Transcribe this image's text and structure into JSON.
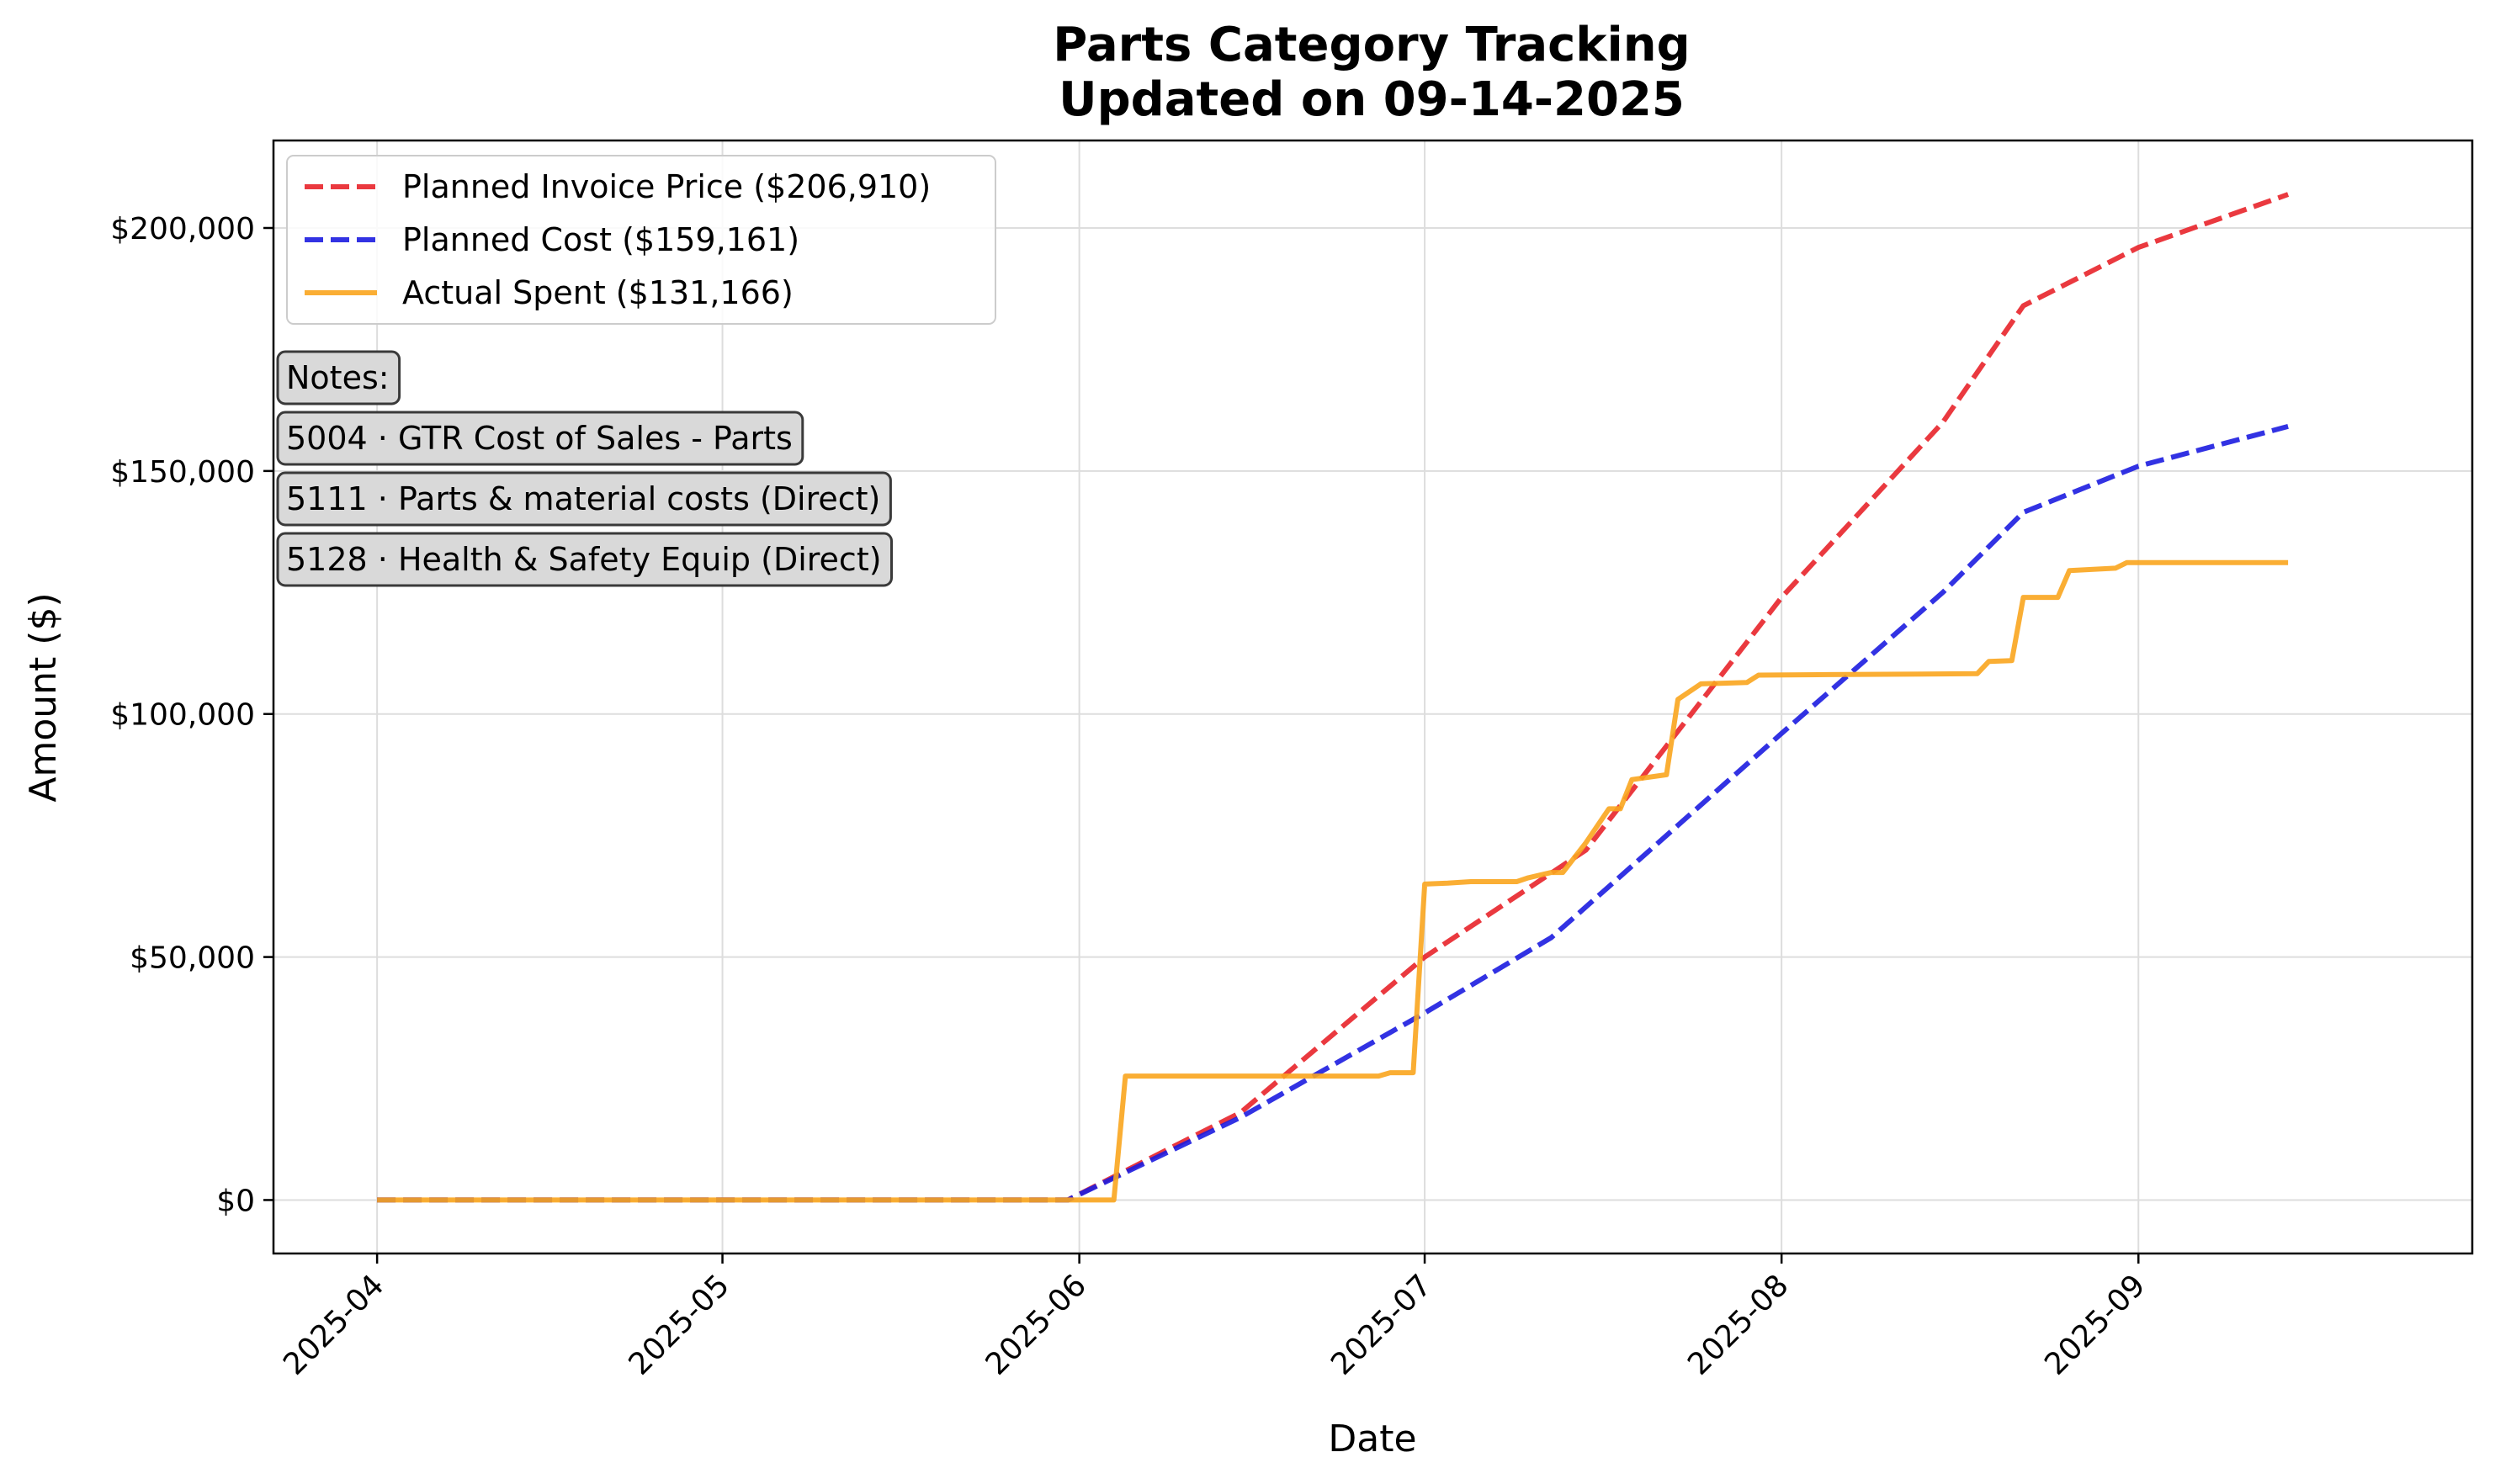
{
  "chart_data": {
    "type": "line",
    "title": "Parts Category Tracking",
    "subtitle": "Updated on 09-14-2025",
    "xlabel": "Date",
    "ylabel": "Amount ($)",
    "x_range": [
      "2025-03-23",
      "2025-09-30"
    ],
    "ylim": [
      -11000,
      218000
    ],
    "grid": true,
    "legend_position": "upper-left",
    "x_ticks": [
      {
        "date": "2025-04-01",
        "label": "2025-04"
      },
      {
        "date": "2025-05-01",
        "label": "2025-05"
      },
      {
        "date": "2025-06-01",
        "label": "2025-06"
      },
      {
        "date": "2025-07-01",
        "label": "2025-07"
      },
      {
        "date": "2025-08-01",
        "label": "2025-08"
      },
      {
        "date": "2025-09-01",
        "label": "2025-09"
      }
    ],
    "y_ticks": [
      {
        "value": 0,
        "label": "$0"
      },
      {
        "value": 50000,
        "label": "$50,000"
      },
      {
        "value": 100000,
        "label": "$100,000"
      },
      {
        "value": 150000,
        "label": "$150,000"
      },
      {
        "value": 200000,
        "label": "$200,000"
      }
    ],
    "series": [
      {
        "name": "Planned Invoice Price ($206,910)",
        "color": "#e8242a",
        "style": "dashed",
        "points": [
          [
            "2025-04-01",
            0
          ],
          [
            "2025-05-31",
            0
          ],
          [
            "2025-06-15",
            18000
          ],
          [
            "2025-07-01",
            50000
          ],
          [
            "2025-07-15",
            72000
          ],
          [
            "2025-08-01",
            124000
          ],
          [
            "2025-08-15",
            160000
          ],
          [
            "2025-08-22",
            184000
          ],
          [
            "2025-09-01",
            196000
          ],
          [
            "2025-09-14",
            206910
          ]
        ]
      },
      {
        "name": "Planned Cost ($159,161)",
        "color": "#1c1ce0",
        "style": "dashed",
        "points": [
          [
            "2025-04-01",
            0
          ],
          [
            "2025-05-31",
            0
          ],
          [
            "2025-06-15",
            17000
          ],
          [
            "2025-07-01",
            38500
          ],
          [
            "2025-07-12",
            54000
          ],
          [
            "2025-08-01",
            96000
          ],
          [
            "2025-08-15",
            125000
          ],
          [
            "2025-08-22",
            141500
          ],
          [
            "2025-09-01",
            151000
          ],
          [
            "2025-09-14",
            159161
          ]
        ]
      },
      {
        "name": "Actual Spent ($131,166)",
        "color": "#f9a51e",
        "style": "solid",
        "points": [
          [
            "2025-04-01",
            0
          ],
          [
            "2025-06-04",
            0
          ],
          [
            "2025-06-05",
            25500
          ],
          [
            "2025-06-27",
            25500
          ],
          [
            "2025-06-28",
            26200
          ],
          [
            "2025-06-30",
            26200
          ],
          [
            "2025-07-01",
            65000
          ],
          [
            "2025-07-03",
            65200
          ],
          [
            "2025-07-05",
            65500
          ],
          [
            "2025-07-09",
            65500
          ],
          [
            "2025-07-10",
            66300
          ],
          [
            "2025-07-12",
            67400
          ],
          [
            "2025-07-13",
            67400
          ],
          [
            "2025-07-15",
            73500
          ],
          [
            "2025-07-17",
            80500
          ],
          [
            "2025-07-18",
            80500
          ],
          [
            "2025-07-19",
            86500
          ],
          [
            "2025-07-22",
            87500
          ],
          [
            "2025-07-23",
            103000
          ],
          [
            "2025-07-25",
            106200
          ],
          [
            "2025-07-29",
            106500
          ],
          [
            "2025-07-30",
            108000
          ],
          [
            "2025-08-05",
            108100
          ],
          [
            "2025-08-18",
            108300
          ],
          [
            "2025-08-19",
            110800
          ],
          [
            "2025-08-21",
            111000
          ],
          [
            "2025-08-22",
            124000
          ],
          [
            "2025-08-25",
            124000
          ],
          [
            "2025-08-26",
            129500
          ],
          [
            "2025-08-30",
            130000
          ],
          [
            "2025-08-31",
            131166
          ],
          [
            "2025-09-14",
            131166
          ]
        ]
      }
    ],
    "notes": [
      "Notes:",
      "5004 · GTR  Cost of Sales - Parts",
      "5111 · Parts & material costs (Direct)",
      "5128 · Health & Safety Equip (Direct)"
    ]
  }
}
